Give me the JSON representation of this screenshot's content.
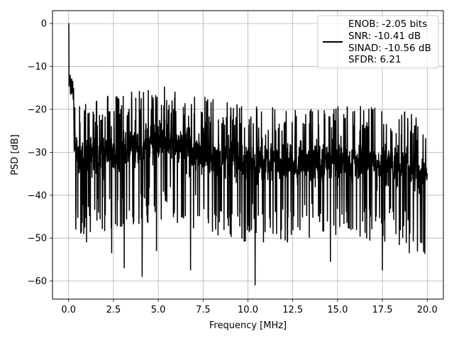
{
  "chart_data": {
    "type": "line",
    "xlabel": "Frequency [MHz]",
    "ylabel": "PSD [dB]",
    "xlim": [
      -0.9,
      20.9
    ],
    "ylim": [
      -64.2,
      3.0
    ],
    "xticks": [
      0.0,
      2.5,
      5.0,
      7.5,
      10.0,
      12.5,
      15.0,
      17.5,
      20.0
    ],
    "xtick_labels": [
      "0.0",
      "2.5",
      "5.0",
      "7.5",
      "10.0",
      "12.5",
      "15.0",
      "17.5",
      "20.0"
    ],
    "yticks": [
      0,
      -10,
      -20,
      -30,
      -40,
      -50,
      -60
    ],
    "ytick_labels": [
      "0",
      "−10",
      "−20",
      "−30",
      "−40",
      "−50",
      "−60"
    ],
    "grid": true,
    "legend_position": "top-right",
    "series": [
      {
        "color": "#000000",
        "legend_lines": [
          "ENOB: -2.05 bits",
          "SNR: -10.41 dB",
          "SINAD: -10.56 dB",
          "SFDR: 6.21"
        ],
        "peaks": [
          {
            "x": 0.0,
            "y": 0.0
          },
          {
            "x": 0.05,
            "y": -14.0
          },
          {
            "x": 0.15,
            "y": -12.0
          },
          {
            "x": 0.3,
            "y": -15.0
          },
          {
            "x": 0.5,
            "y": -18.5
          },
          {
            "x": 1.0,
            "y": -17.5
          },
          {
            "x": 1.5,
            "y": -17.0
          },
          {
            "x": 2.0,
            "y": -16.5
          },
          {
            "x": 3.0,
            "y": -16.0
          },
          {
            "x": 5.0,
            "y": -14.0
          },
          {
            "x": 7.5,
            "y": -17.0
          },
          {
            "x": 10.0,
            "y": -19.0
          },
          {
            "x": 12.5,
            "y": -19.0
          },
          {
            "x": 15.0,
            "y": -19.0
          },
          {
            "x": 17.5,
            "y": -19.0
          },
          {
            "x": 20.0,
            "y": -22.0
          }
        ],
        "dips": [
          {
            "x": 0.4,
            "y": -48.0
          },
          {
            "x": 1.0,
            "y": -51.0
          },
          {
            "x": 2.4,
            "y": -53.5
          },
          {
            "x": 3.1,
            "y": -57.0
          },
          {
            "x": 4.1,
            "y": -59.0
          },
          {
            "x": 4.9,
            "y": -53.0
          },
          {
            "x": 6.8,
            "y": -57.5
          },
          {
            "x": 8.2,
            "y": -48.0
          },
          {
            "x": 10.4,
            "y": -61.0
          },
          {
            "x": 12.2,
            "y": -51.0
          },
          {
            "x": 14.6,
            "y": -55.5
          },
          {
            "x": 17.5,
            "y": -57.5
          },
          {
            "x": 19.0,
            "y": -53.5
          }
        ]
      }
    ]
  }
}
